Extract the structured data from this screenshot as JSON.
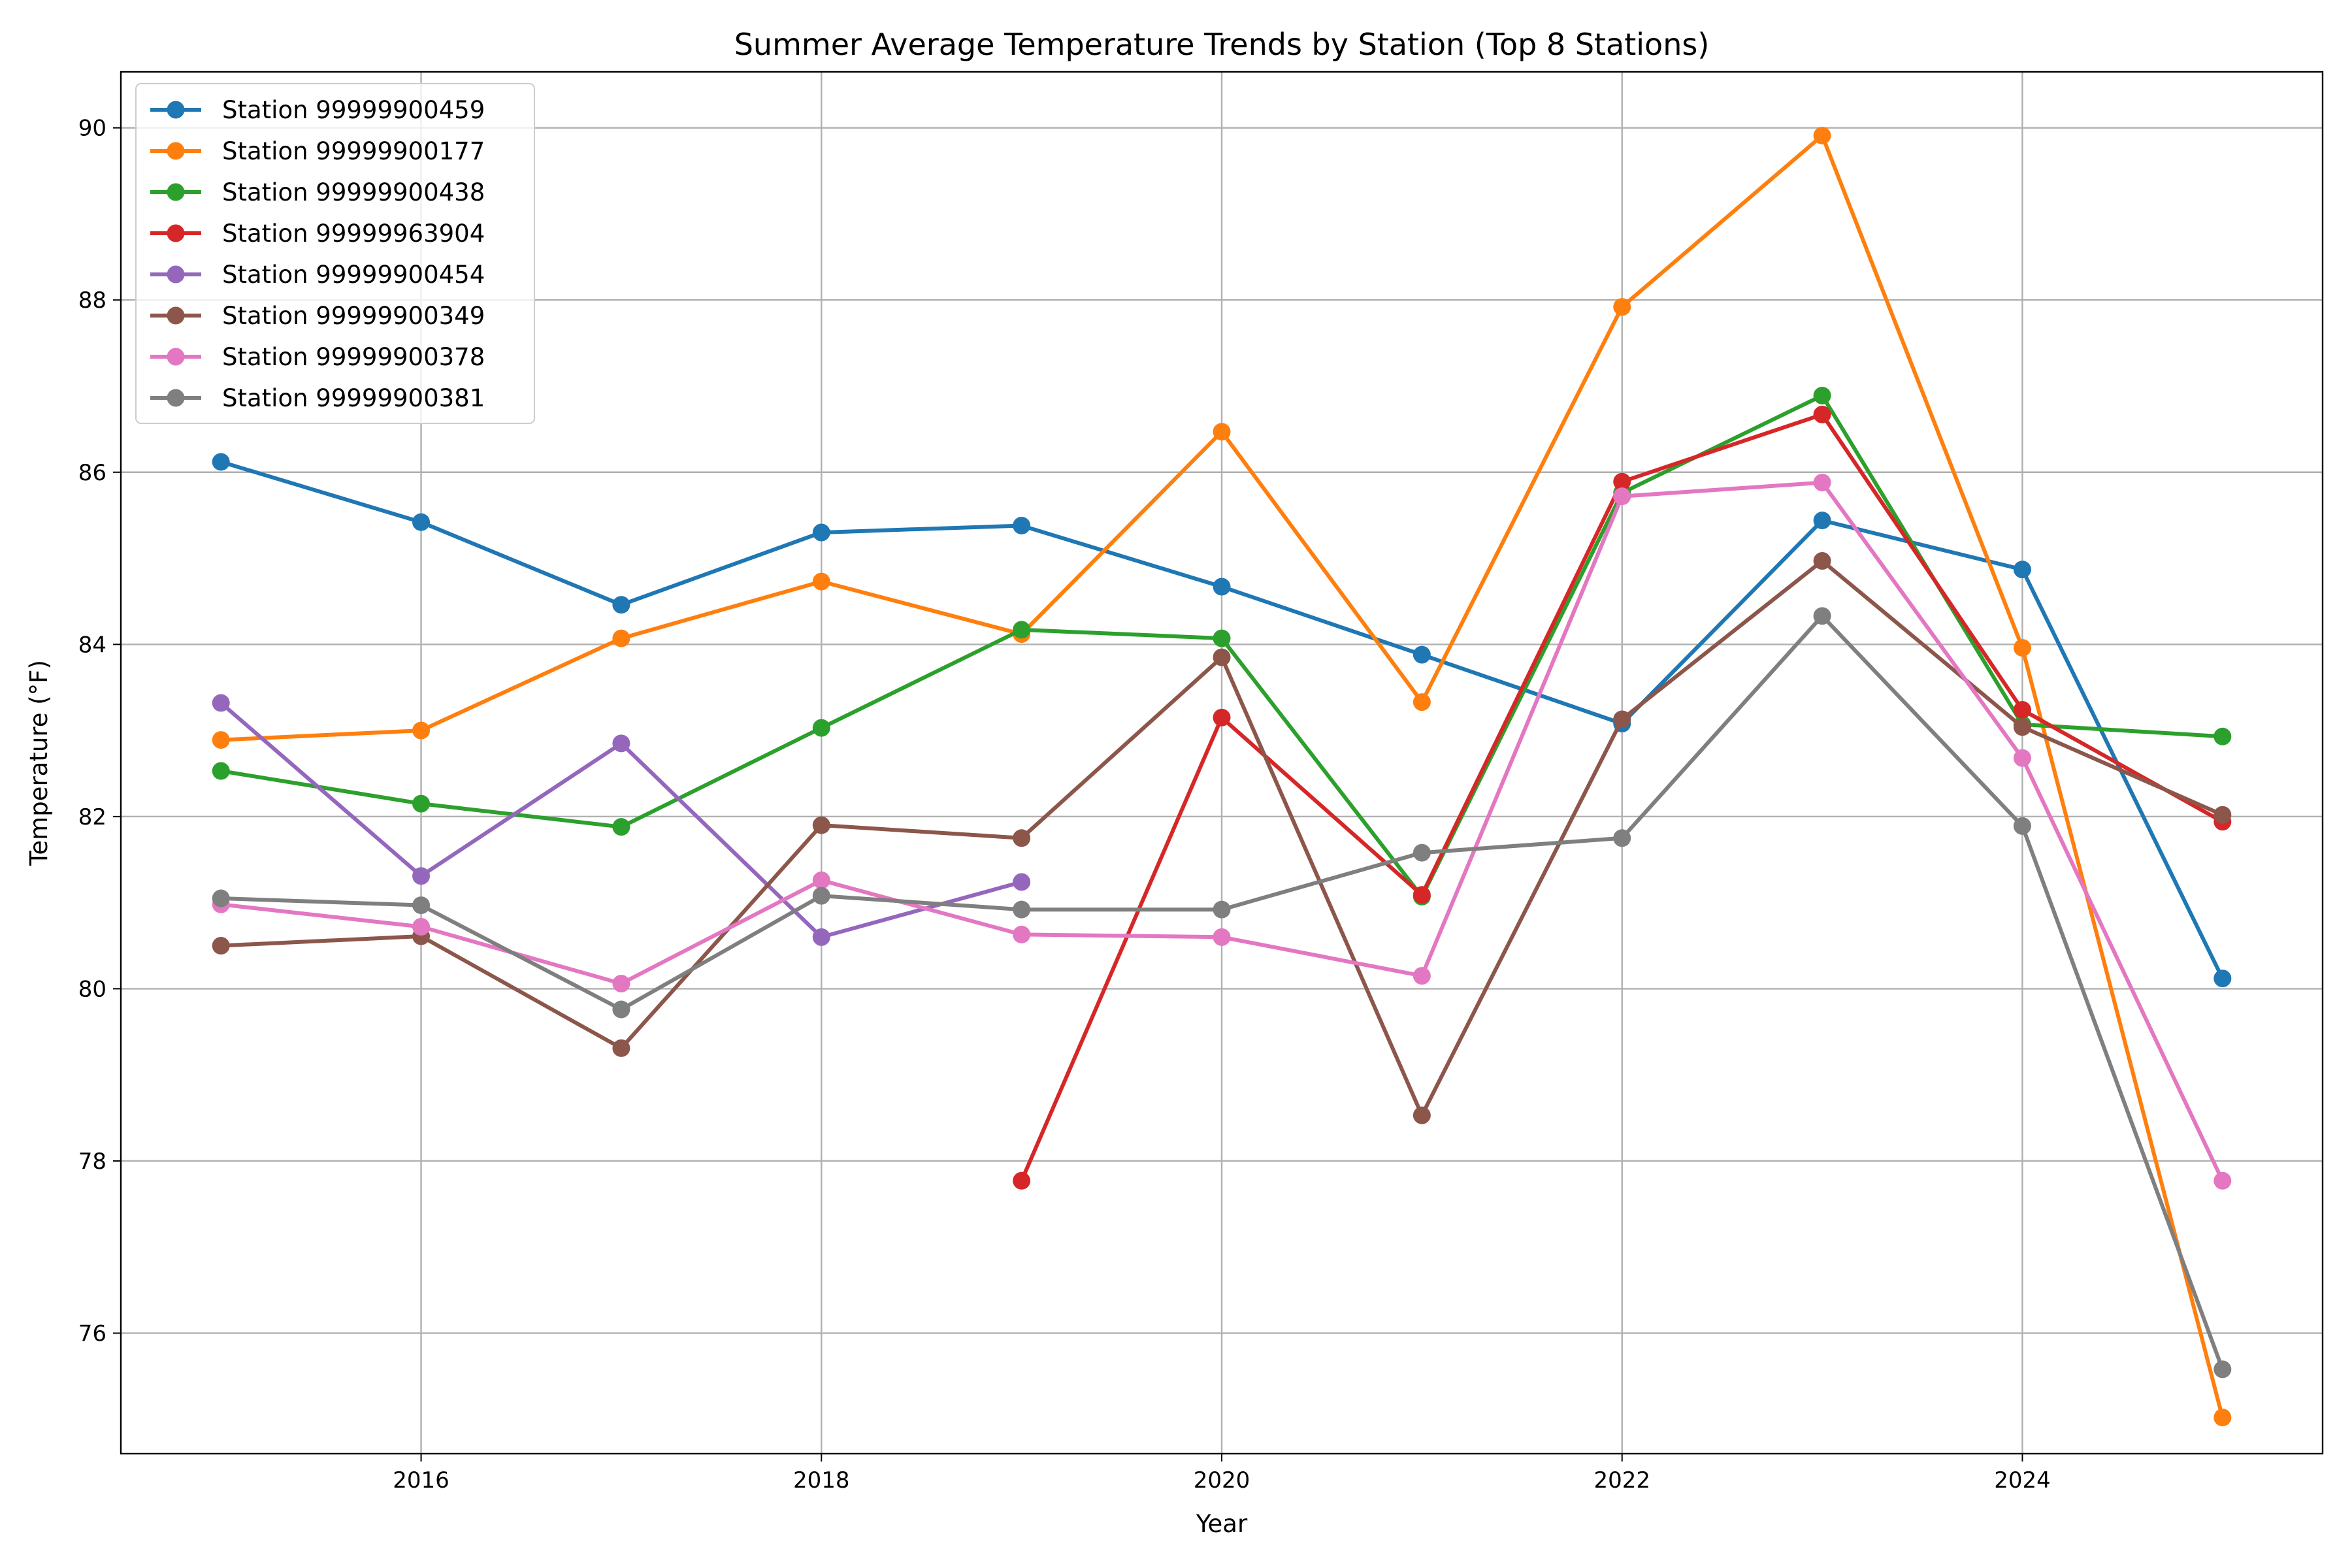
{
  "chart_data": {
    "type": "line",
    "title": "Summer Average Temperature Trends by Station (Top 8 Stations)",
    "xlabel": "Year",
    "ylabel": "Temperature (°F)",
    "xlim": [
      2014.5,
      2025.5
    ],
    "ylim": [
      74.6,
      90.65
    ],
    "xticks": [
      2016,
      2018,
      2020,
      2022,
      2024
    ],
    "yticks": [
      76,
      78,
      80,
      82,
      84,
      86,
      88,
      90
    ],
    "grid": true,
    "legend_position": "upper-left",
    "x": [
      2015,
      2016,
      2017,
      2018,
      2019,
      2020,
      2021,
      2022,
      2023,
      2024,
      2025
    ],
    "series": [
      {
        "name": "Station 99999900459",
        "color": "#1f77b4",
        "values": [
          86.12,
          85.42,
          84.46,
          85.3,
          85.38,
          84.67,
          83.88,
          83.08,
          85.44,
          84.87,
          80.12
        ]
      },
      {
        "name": "Station 99999900177",
        "color": "#ff7f0e",
        "values": [
          82.89,
          83.0,
          84.07,
          84.73,
          84.12,
          86.47,
          83.33,
          87.92,
          89.91,
          83.96,
          75.02
        ]
      },
      {
        "name": "Station 99999900438",
        "color": "#2ca02c",
        "values": [
          82.53,
          82.15,
          81.88,
          83.03,
          84.17,
          84.07,
          81.07,
          85.76,
          86.89,
          83.07,
          82.93
        ]
      },
      {
        "name": "Station 99999963904",
        "color": "#d62728",
        "values": [
          null,
          null,
          null,
          null,
          77.77,
          83.15,
          81.09,
          85.89,
          86.67,
          83.24,
          81.94
        ]
      },
      {
        "name": "Station 99999900454",
        "color": "#9467bd",
        "values": [
          83.32,
          81.31,
          82.85,
          80.6,
          81.24,
          null,
          null,
          null,
          null,
          null,
          null
        ]
      },
      {
        "name": "Station 99999900349",
        "color": "#8c564b",
        "values": [
          80.5,
          80.61,
          79.31,
          81.9,
          81.75,
          83.85,
          78.53,
          83.13,
          84.97,
          83.04,
          82.02
        ]
      },
      {
        "name": "Station 99999900378",
        "color": "#e377c2",
        "values": [
          80.98,
          80.72,
          80.06,
          81.26,
          80.63,
          80.6,
          80.15,
          85.72,
          85.88,
          82.68,
          77.77
        ]
      },
      {
        "name": "Station 99999900381",
        "color": "#7f7f7f",
        "values": [
          81.05,
          80.97,
          79.76,
          81.08,
          80.92,
          80.92,
          81.58,
          81.75,
          84.33,
          81.89,
          75.58
        ]
      }
    ]
  }
}
